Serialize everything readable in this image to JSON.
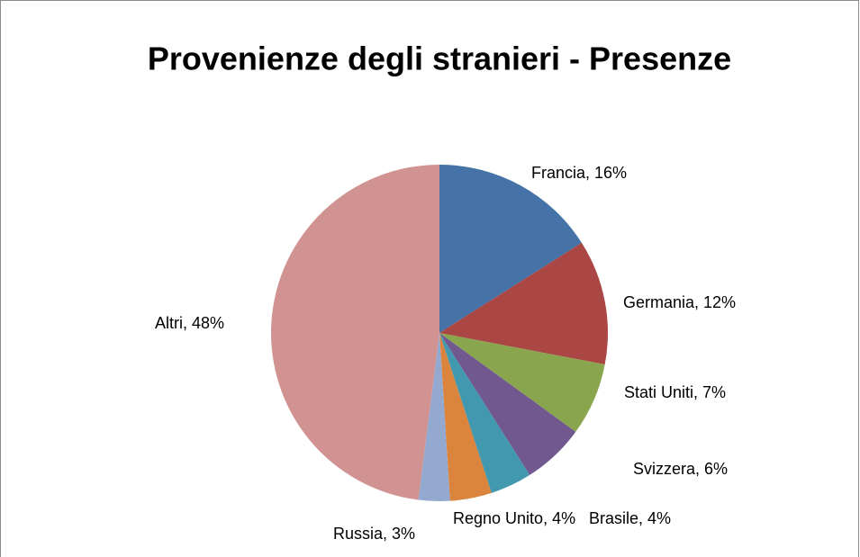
{
  "chart_data": {
    "type": "pie",
    "title": "Provenienze degli stranieri - Presenze",
    "categories": [
      "Francia",
      "Germania",
      "Stati Uniti",
      "Svizzera",
      "Brasile",
      "Regno Unito",
      "Russia",
      "Altri"
    ],
    "values": [
      16,
      12,
      7,
      6,
      4,
      4,
      3,
      48
    ],
    "value_labels": [
      "Francia, 16%",
      "Germania, 12%",
      "Stati Uniti, 7%",
      "Svizzera, 6%",
      "Brasile, 4%",
      "Regno Unito, 4%",
      "Russia, 3%",
      "Altri, 48%"
    ],
    "colors": [
      "#4572a7",
      "#aa4643",
      "#89a54e",
      "#71588f",
      "#4198af",
      "#db843d",
      "#93a9cf",
      "#d19392"
    ]
  }
}
